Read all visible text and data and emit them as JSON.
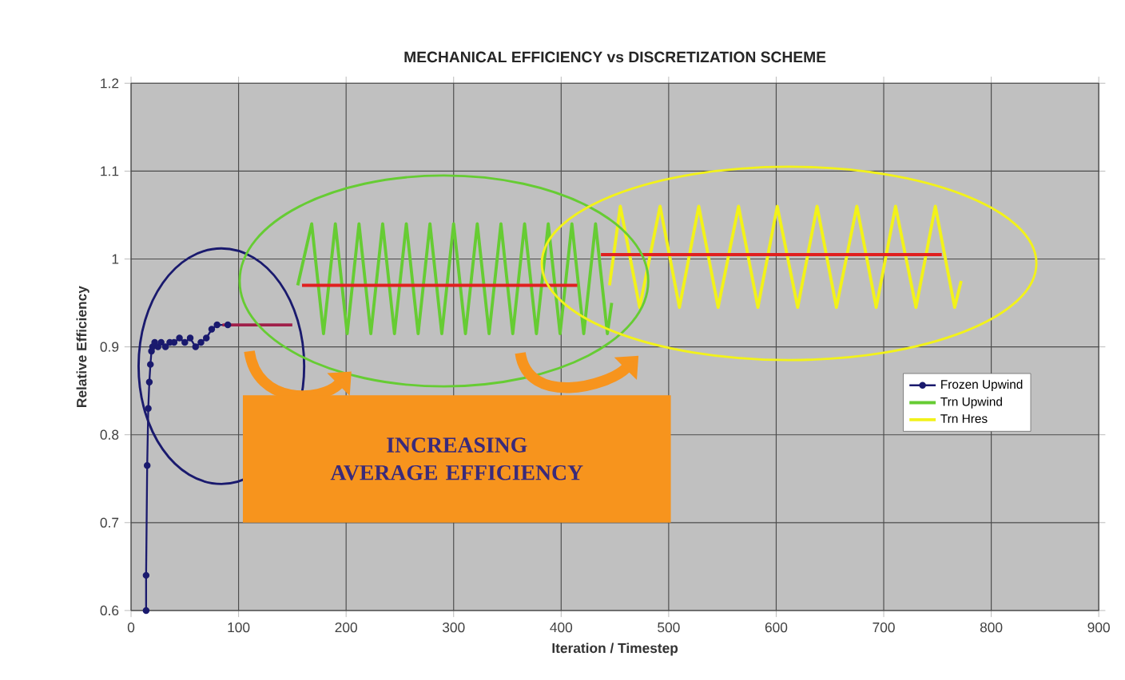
{
  "chart_data": {
    "type": "line",
    "title": "MECHANICAL EFFICIENCY vs DISCRETIZATION SCHEME",
    "xlabel": "Iteration / Timestep",
    "ylabel": "Relative Efficiency",
    "xlim": [
      0,
      900
    ],
    "xticks": [
      0,
      100,
      200,
      300,
      400,
      500,
      600,
      700,
      800,
      900
    ],
    "ylim": [
      0.6,
      1.2
    ],
    "yticks": [
      0.6,
      0.7,
      0.8,
      0.9,
      1,
      1.1,
      1.2
    ],
    "grid": true,
    "legend": "right",
    "annotations": [
      "INCREASING AVERAGE EFFICIENCY"
    ],
    "series": [
      {
        "name": "Frozen Upwind",
        "color": "#1a1a6e",
        "marker": "circle",
        "x": [
          14,
          14,
          15,
          16,
          17,
          18,
          19,
          20,
          22,
          25,
          28,
          32,
          36,
          40,
          45,
          50,
          55,
          60,
          65,
          70,
          75,
          80,
          90
        ],
        "values": [
          0.6,
          0.64,
          0.765,
          0.83,
          0.86,
          0.88,
          0.895,
          0.9,
          0.905,
          0.9,
          0.905,
          0.9,
          0.905,
          0.905,
          0.91,
          0.905,
          0.91,
          0.9,
          0.905,
          0.91,
          0.92,
          0.925,
          0.925
        ]
      },
      {
        "name": "Trn Upwind",
        "color": "#66cc33",
        "marker": "none",
        "x": [
          155,
          168,
          179,
          190,
          201,
          212,
          223,
          234,
          245,
          256,
          267,
          278,
          289,
          300,
          311,
          322,
          333,
          344,
          355,
          366,
          377,
          388,
          399,
          410,
          421,
          432,
          443,
          447
        ],
        "values": [
          0.97,
          1.04,
          0.915,
          1.04,
          0.915,
          1.04,
          0.915,
          1.04,
          0.915,
          1.04,
          0.915,
          1.04,
          0.915,
          1.04,
          0.915,
          1.04,
          0.915,
          1.04,
          0.915,
          1.04,
          0.915,
          1.04,
          0.915,
          1.04,
          0.915,
          1.04,
          0.915,
          0.95
        ]
      },
      {
        "name": "Trn Hres",
        "color": "#f2f21a",
        "marker": "none",
        "x": [
          445,
          455,
          473,
          492,
          510,
          528,
          546,
          565,
          583,
          601,
          620,
          638,
          656,
          675,
          693,
          711,
          730,
          748,
          766,
          772
        ],
        "values": [
          0.97,
          1.06,
          0.945,
          1.06,
          0.945,
          1.06,
          0.945,
          1.06,
          0.945,
          1.06,
          0.945,
          1.06,
          0.945,
          1.06,
          0.945,
          1.06,
          0.945,
          1.06,
          0.945,
          0.975
        ]
      },
      {
        "color": "#a0204a",
        "marker": "none",
        "x": [
          85,
          150
        ],
        "values": [
          0.925,
          0.925
        ]
      },
      {
        "color": "#e02020",
        "marker": "none",
        "x": [
          159,
          415
        ],
        "values": [
          0.97,
          0.97
        ]
      },
      {
        "color": "#e02020",
        "marker": "none",
        "x": [
          437,
          754
        ],
        "values": [
          1.005,
          1.005
        ]
      }
    ]
  }
}
